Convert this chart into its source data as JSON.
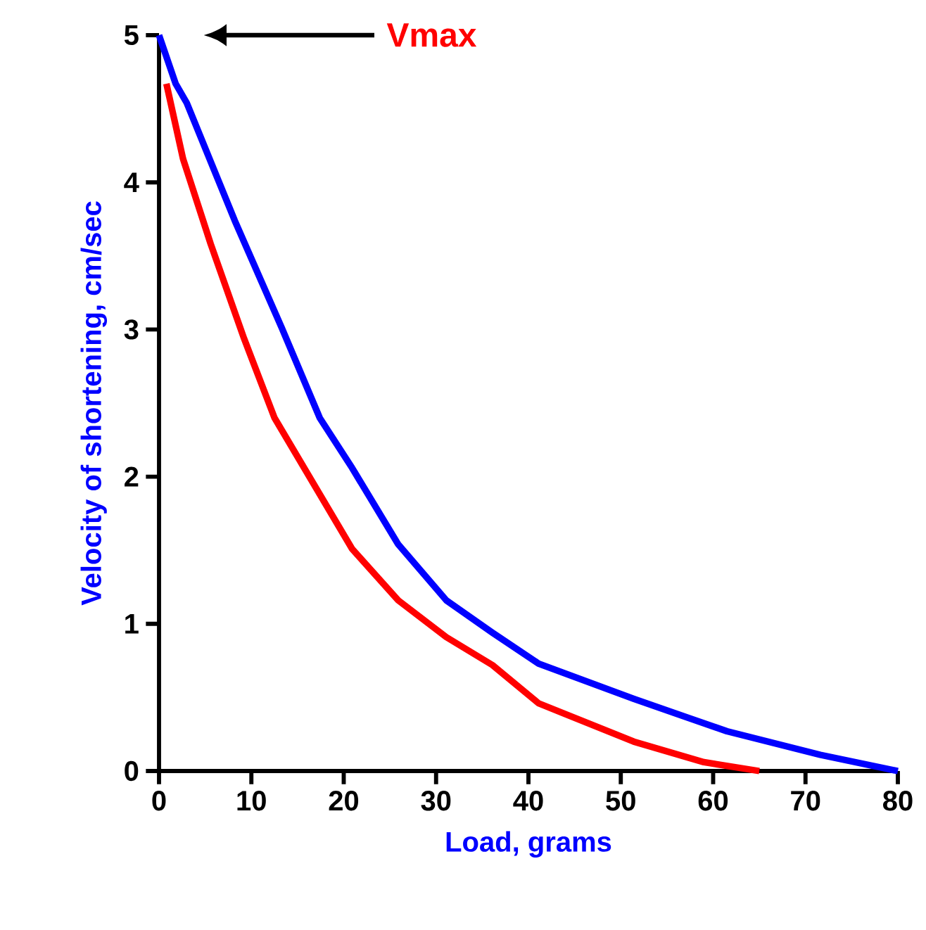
{
  "chart_data": {
    "type": "line",
    "xlabel": "Load, grams",
    "ylabel": "Velocity of shortening, cm/sec",
    "xlim": [
      0,
      80
    ],
    "ylim": [
      0,
      5
    ],
    "xticks": [
      0,
      10,
      20,
      30,
      40,
      50,
      60,
      70,
      80
    ],
    "yticks": [
      0,
      1,
      2,
      3,
      4,
      5
    ],
    "marker": "none",
    "line_style": "solid",
    "series": [
      {
        "color": "#0000ff",
        "x": [
          0,
          1.8,
          3.0,
          8.2,
          13.3,
          17.4,
          20.9,
          25.9,
          31.1,
          36.1,
          41.1,
          51.4,
          61.5,
          71.6,
          80
        ],
        "values": [
          5,
          4.67,
          4.54,
          3.74,
          3.01,
          2.4,
          2.06,
          1.54,
          1.16,
          0.94,
          0.73,
          0.49,
          0.27,
          0.11,
          0
        ]
      },
      {
        "color": "#ff0000",
        "x": [
          0.8,
          2.6,
          5.6,
          9.2,
          12.5,
          20.9,
          25.9,
          31.1,
          36.1,
          41.1,
          51.4,
          59,
          65
        ],
        "values": [
          4.67,
          4.16,
          3.58,
          2.94,
          2.4,
          1.51,
          1.16,
          0.91,
          0.72,
          0.46,
          0.2,
          0.06,
          0
        ]
      }
    ],
    "annotations": [
      "Vmax"
    ]
  }
}
